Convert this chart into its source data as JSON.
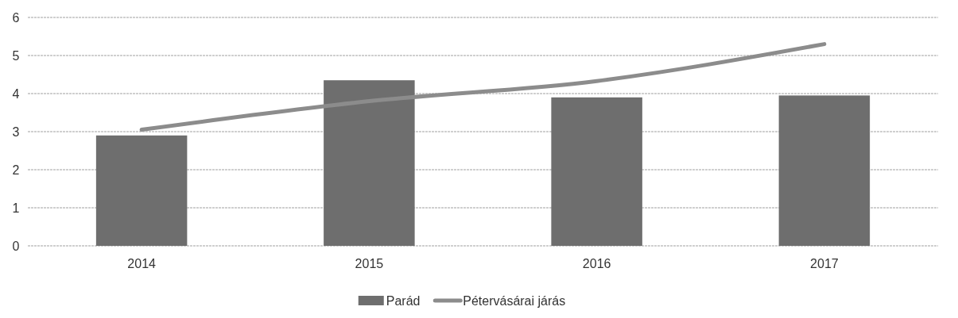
{
  "chart_data": {
    "type": "bar",
    "categories": [
      "2014",
      "2015",
      "2016",
      "2017"
    ],
    "series": [
      {
        "name": "Parád",
        "color": "#6e6e6e",
        "values": [
          2.9,
          4.35,
          3.9,
          3.95
        ]
      },
      {
        "name": "Pétervásárai járás",
        "type": "line",
        "color": "#8c8c8c",
        "values": [
          3.05,
          3.8,
          4.33,
          5.3
        ]
      }
    ],
    "ylim": [
      0,
      6
    ],
    "yticks": [
      0,
      1,
      2,
      3,
      4,
      5,
      6
    ],
    "grid": "y",
    "legend": "bottom",
    "marker": "none"
  }
}
